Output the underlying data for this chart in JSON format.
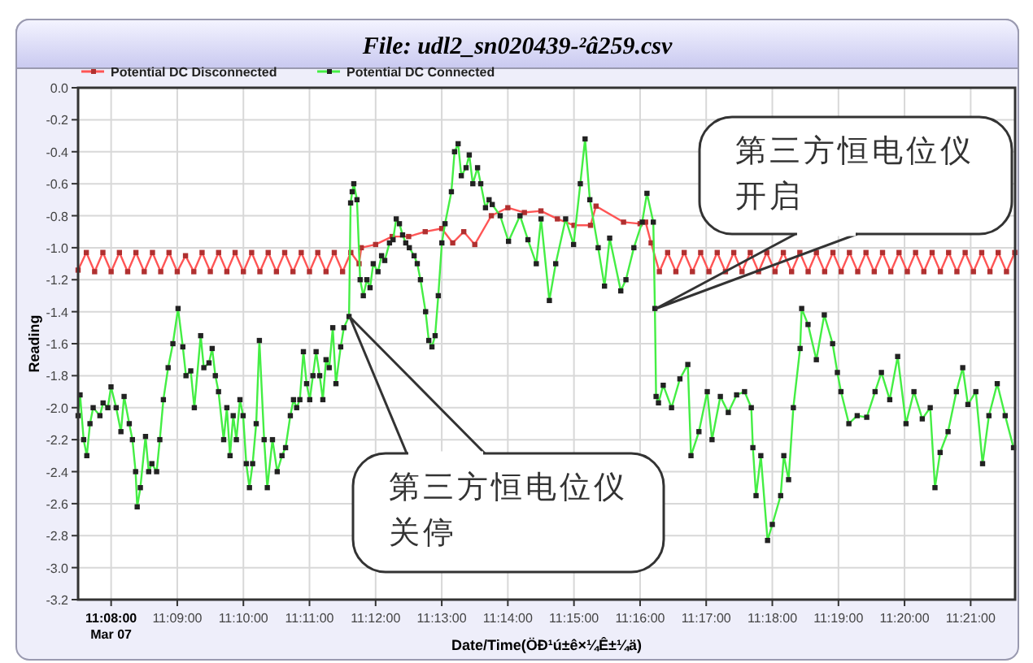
{
  "chart_data": {
    "type": "line",
    "title": "File: udl2_sn020439-²â259.csv",
    "xlabel": "Date/Time(ÖÐ¹ú±ê×¼Ê±¼ä)",
    "ylabel": "Reading",
    "xlim": [
      11.125,
      11.3612
    ],
    "xticks": [
      {
        "value": 11.13333,
        "label": "11:08:00\nMar 07"
      },
      {
        "value": 11.15,
        "label": "11:09:00"
      },
      {
        "value": 11.16667,
        "label": "11:10:00"
      },
      {
        "value": 11.18333,
        "label": "11:11:00"
      },
      {
        "value": 11.2,
        "label": "11:12:00"
      },
      {
        "value": 11.21667,
        "label": "11:13:00"
      },
      {
        "value": 11.23333,
        "label": "11:14:00"
      },
      {
        "value": 11.25,
        "label": "11:15:00"
      },
      {
        "value": 11.26667,
        "label": "11:16:00"
      },
      {
        "value": 11.28333,
        "label": "11:17:00"
      },
      {
        "value": 11.3,
        "label": "11:18:00"
      },
      {
        "value": 11.31667,
        "label": "11:19:00"
      },
      {
        "value": 11.33333,
        "label": "11:20:00"
      },
      {
        "value": 11.35,
        "label": "11:21:00"
      }
    ],
    "ylim": [
      -3.2,
      0
    ],
    "yticks": [
      {
        "value": 0,
        "label": "0.0"
      },
      -0.2,
      -0.4,
      -0.6,
      -0.8,
      {
        "value": -1,
        "label": "-1.0"
      },
      -1.2,
      -1.4,
      -1.6,
      -1.8,
      {
        "value": -2,
        "label": "-2.0"
      },
      -2.2,
      -2.4,
      -2.6,
      -2.8,
      {
        "value": -3,
        "label": "-3.0"
      },
      -3.2
    ],
    "grid": true,
    "legend": "top left",
    "marker": "square",
    "line_style": "solid",
    "annotations": [
      "第三方恒电位仪开启",
      "第三方恒电位仪关停"
    ],
    "series": [
      {
        "name": "Potential DC Disconnected",
        "color": "#ff5555",
        "x": [
          11.125,
          11.12708,
          11.12917,
          11.13125,
          11.13333,
          11.13542,
          11.1375,
          11.13958,
          11.14167,
          11.14375,
          11.14583,
          11.14792,
          11.15,
          11.15208,
          11.15417,
          11.15625,
          11.15833,
          11.16042,
          11.1625,
          11.16458,
          11.16667,
          11.16875,
          11.17083,
          11.17292,
          11.175,
          11.17708,
          11.17917,
          11.18125,
          11.18333,
          11.18542,
          11.1875,
          11.18958,
          11.19167,
          11.19375,
          11.19583,
          11.19639,
          11.2,
          11.20417,
          11.20833,
          11.2125,
          11.21667,
          11.21944,
          11.22222,
          11.225,
          11.22917,
          11.23333,
          11.2375,
          11.24167,
          11.24583,
          11.25,
          11.25417,
          11.25556,
          11.2625,
          11.26667,
          11.26806,
          11.26944,
          11.27153,
          11.27361,
          11.27569,
          11.27778,
          11.27986,
          11.28194,
          11.28403,
          11.28611,
          11.28819,
          11.29028,
          11.29236,
          11.29444,
          11.29653,
          11.29861,
          11.30069,
          11.30278,
          11.30486,
          11.30694,
          11.30903,
          11.31111,
          11.31319,
          11.31528,
          11.31736,
          11.31944,
          11.32153,
          11.32361,
          11.32569,
          11.32778,
          11.32986,
          11.33194,
          11.33403,
          11.33611,
          11.33819,
          11.34028,
          11.34236,
          11.34444,
          11.34653,
          11.34861,
          11.35069,
          11.35278,
          11.35486,
          11.35694,
          11.35903,
          11.36111
        ],
        "values": [
          -1.14,
          -1.03,
          -1.15,
          -1.03,
          -1.15,
          -1.03,
          -1.15,
          -1.03,
          -1.15,
          -1.03,
          -1.15,
          -1.03,
          -1.15,
          -1.05,
          -1.15,
          -1.03,
          -1.15,
          -1.03,
          -1.15,
          -1.03,
          -1.15,
          -1.03,
          -1.15,
          -1.03,
          -1.15,
          -1.03,
          -1.15,
          -1.03,
          -1.15,
          -1.03,
          -1.15,
          -1.03,
          -1.15,
          -1.03,
          -1.1,
          -1.0,
          -0.98,
          -0.93,
          -0.93,
          -0.9,
          -0.88,
          -0.97,
          -0.9,
          -0.98,
          -0.8,
          -0.75,
          -0.78,
          -0.77,
          -0.82,
          -0.86,
          -0.86,
          -0.74,
          -0.84,
          -0.85,
          -0.84,
          -0.97,
          -1.15,
          -1.03,
          -1.15,
          -1.03,
          -1.15,
          -1.03,
          -1.15,
          -1.03,
          -1.15,
          -1.03,
          -1.15,
          -1.03,
          -1.15,
          -1.03,
          -1.15,
          -1.03,
          -1.15,
          -1.03,
          -1.15,
          -1.03,
          -1.15,
          -1.03,
          -1.15,
          -1.03,
          -1.15,
          -1.03,
          -1.15,
          -1.03,
          -1.15,
          -1.03,
          -1.15,
          -1.03,
          -1.15,
          -1.03,
          -1.15,
          -1.03,
          -1.15,
          -1.03,
          -1.15,
          -1.03,
          -1.15,
          -1.03,
          -1.15,
          -1.03
        ]
      },
      {
        "name": "Potential DC Connected",
        "color": "#44ee44",
        "x": [
          11.125,
          11.1255,
          11.1264,
          11.1272,
          11.128,
          11.1288,
          11.1305,
          11.1313,
          11.1325,
          11.1333,
          11.1346,
          11.1358,
          11.1366,
          11.1379,
          11.1387,
          11.1395,
          11.1399,
          11.1407,
          11.142,
          11.1428,
          11.1436,
          11.1448,
          11.1456,
          11.1465,
          11.1477,
          11.1489,
          11.1502,
          11.1514,
          11.1522,
          11.1534,
          11.1543,
          11.1559,
          11.1567,
          11.158,
          11.1588,
          11.1596,
          11.1604,
          11.1617,
          11.1625,
          11.1633,
          11.1641,
          11.1649,
          11.1658,
          11.1666,
          11.1674,
          11.1682,
          11.169,
          11.1699,
          11.1707,
          11.1719,
          11.1727,
          11.174,
          11.1752,
          11.1764,
          11.1773,
          11.1785,
          11.1793,
          11.1801,
          11.1809,
          11.1818,
          11.1826,
          11.1834,
          11.1842,
          11.185,
          11.1859,
          11.1867,
          11.1875,
          11.1883,
          11.1892,
          11.19,
          11.1912,
          11.192,
          11.1933,
          11.1937,
          11.1941,
          11.1945,
          11.1953,
          11.1961,
          11.1969,
          11.1978,
          11.1986,
          11.1994,
          11.2006,
          11.2015,
          11.2023,
          11.2035,
          11.2044,
          11.2052,
          11.206,
          11.2068,
          11.2076,
          11.2085,
          11.2097,
          11.2105,
          11.2113,
          11.2126,
          11.2134,
          11.2142,
          11.215,
          11.2158,
          11.2167,
          11.2175,
          11.2191,
          11.2199,
          11.2208,
          11.2216,
          11.2228,
          11.2236,
          11.2245,
          11.2257,
          11.2265,
          11.2277,
          11.2286,
          11.2294,
          11.2314,
          11.2335,
          11.2364,
          11.2384,
          11.2405,
          11.2417,
          11.2438,
          11.2454,
          11.2479,
          11.2499,
          11.2516,
          11.2528,
          11.254,
          11.2561,
          11.2577,
          11.259,
          11.2618,
          11.2631,
          11.2651,
          11.2672,
          11.2684,
          11.27,
          11.2704,
          11.2707,
          11.2713,
          11.2725,
          11.2746,
          11.2767,
          11.2787,
          11.2795,
          11.2815,
          11.2836,
          11.2848,
          11.2869,
          11.2889,
          11.291,
          11.293,
          11.2947,
          11.2951,
          11.2959,
          11.2971,
          11.2988,
          11.3,
          11.3021,
          11.3029,
          11.3041,
          11.3053,
          11.307,
          11.3074,
          11.309,
          11.3111,
          11.3131,
          11.3152,
          11.3164,
          11.3173,
          11.3193,
          11.3214,
          11.3238,
          11.3259,
          11.3275,
          11.3296,
          11.3316,
          11.3337,
          11.3357,
          11.3378,
          11.3398,
          11.341,
          11.3423,
          11.3443,
          11.3464,
          11.348,
          11.3493,
          11.3513,
          11.353,
          11.3546,
          11.3567,
          11.3587,
          11.3608
        ],
        "values": [
          -2.05,
          -1.92,
          -2.2,
          -2.3,
          -2.1,
          -2.0,
          -2.05,
          -1.97,
          -2.0,
          -1.87,
          -2.0,
          -2.15,
          -1.93,
          -2.1,
          -2.2,
          -2.4,
          -2.62,
          -2.5,
          -2.18,
          -2.4,
          -2.35,
          -2.4,
          -2.2,
          -1.95,
          -1.75,
          -1.6,
          -1.38,
          -1.62,
          -1.8,
          -1.77,
          -2.0,
          -1.55,
          -1.75,
          -1.72,
          -1.63,
          -1.8,
          -1.9,
          -2.2,
          -2.0,
          -2.3,
          -2.05,
          -2.2,
          -1.95,
          -2.05,
          -2.35,
          -2.5,
          -2.35,
          -2.1,
          -1.58,
          -2.2,
          -2.5,
          -2.2,
          -2.4,
          -2.3,
          -2.25,
          -2.05,
          -1.95,
          -2.0,
          -1.95,
          -1.65,
          -1.85,
          -1.95,
          -1.8,
          -1.65,
          -1.8,
          -1.95,
          -1.7,
          -1.75,
          -1.5,
          -1.85,
          -1.62,
          -1.5,
          -1.43,
          -0.72,
          -0.65,
          -0.6,
          -0.7,
          -1.2,
          -1.3,
          -1.2,
          -1.25,
          -1.1,
          -1.15,
          -1.05,
          -1.08,
          -0.97,
          -0.95,
          -0.82,
          -0.85,
          -0.92,
          -0.97,
          -1.0,
          -1.05,
          -1.1,
          -1.2,
          -1.4,
          -1.58,
          -1.62,
          -1.55,
          -1.3,
          -0.97,
          -0.85,
          -0.65,
          -0.4,
          -0.35,
          -0.55,
          -0.5,
          -0.42,
          -0.6,
          -0.5,
          -0.6,
          -0.75,
          -0.7,
          -0.73,
          -0.8,
          -0.96,
          -0.8,
          -0.95,
          -1.1,
          -0.82,
          -1.33,
          -1.1,
          -0.82,
          -0.98,
          -0.6,
          -0.32,
          -0.7,
          -1.0,
          -1.24,
          -0.94,
          -1.27,
          -1.2,
          -1.0,
          -0.84,
          -0.66,
          -0.84,
          -1.38,
          -1.93,
          -1.97,
          -1.86,
          -2.0,
          -1.82,
          -1.73,
          -2.3,
          -2.15,
          -1.9,
          -2.2,
          -1.93,
          -2.03,
          -1.92,
          -1.9,
          -2.0,
          -2.25,
          -2.55,
          -2.3,
          -2.83,
          -2.73,
          -2.55,
          -2.3,
          -2.45,
          -2.0,
          -1.63,
          -1.38,
          -1.48,
          -1.7,
          -1.42,
          -1.6,
          -1.78,
          -1.9,
          -2.1,
          -2.05,
          -2.06,
          -1.9,
          -1.78,
          -1.95,
          -1.68,
          -2.1,
          -1.9,
          -2.07,
          -2.0,
          -2.5,
          -2.28,
          -2.15,
          -1.9,
          -1.75,
          -1.98,
          -1.9,
          -2.35,
          -2.05,
          -1.85,
          -2.05,
          -2.25
        ]
      }
    ]
  }
}
